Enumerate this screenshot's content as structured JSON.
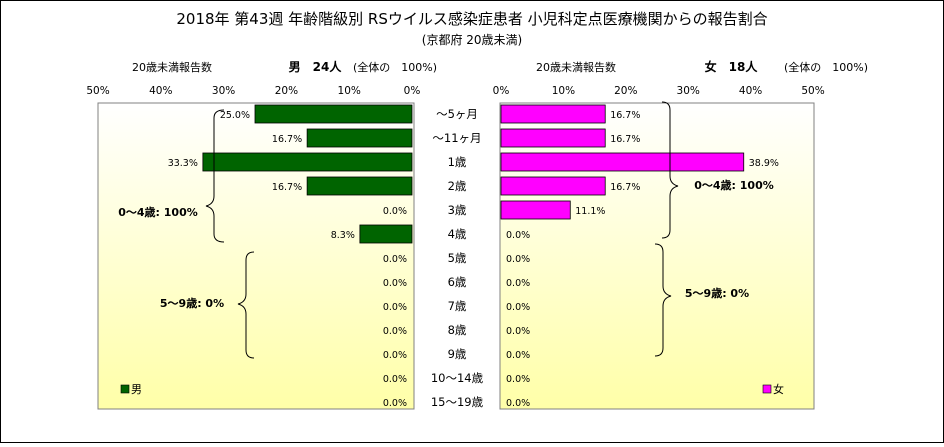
{
  "chart_data": {
    "type": "bar",
    "title": "2018年 第43週 年齢階級別 RSウイルス感染症患者 小児科定点医療機関からの報告割合",
    "subtitle": "(京都府 20歳未満)",
    "categories": [
      "～5ヶ月",
      "～11ヶ月",
      "1歳",
      "2歳",
      "3歳",
      "4歳",
      "5歳",
      "6歳",
      "7歳",
      "8歳",
      "9歳",
      "10～14歳",
      "15～19歳"
    ],
    "xlim": [
      0,
      50
    ],
    "ticks": [
      "50%",
      "40%",
      "30%",
      "20%",
      "10%",
      "0%"
    ],
    "ticks_right": [
      "0%",
      "10%",
      "20%",
      "30%",
      "40%",
      "50%"
    ],
    "series": [
      {
        "name": "男",
        "color": "#006400",
        "values": [
          25.0,
          16.7,
          33.3,
          16.7,
          0.0,
          8.3,
          0.0,
          0.0,
          0.0,
          0.0,
          0.0,
          0.0,
          0.0
        ],
        "labels": [
          "25.0%",
          "16.7%",
          "33.3%",
          "16.7%",
          "0.0%",
          "8.3%",
          "0.0%",
          "0.0%",
          "0.0%",
          "0.0%",
          "0.0%",
          "0.0%",
          "0.0%"
        ]
      },
      {
        "name": "女",
        "color": "#ff00ff",
        "values": [
          16.7,
          16.7,
          38.9,
          16.7,
          11.1,
          0.0,
          0.0,
          0.0,
          0.0,
          0.0,
          0.0,
          0.0,
          0.0
        ],
        "labels": [
          "16.7%",
          "16.7%",
          "38.9%",
          "16.7%",
          "11.1%",
          "0.0%",
          "0.0%",
          "0.0%",
          "0.0%",
          "0.0%",
          "0.0%",
          "0.0%",
          "0.0%"
        ]
      }
    ],
    "left_panel": {
      "header_left": "20歳未満報告数",
      "header_right": "男　24人",
      "header_note": "(全体の　100%)"
    },
    "right_panel": {
      "header_left": "20歳未満報告数",
      "header_right": "女　18人",
      "header_note": "(全体の　100%)"
    },
    "annotations": {
      "male_0_4": "0～4歳: 100%",
      "male_5_9": "5～9歳: 0%",
      "female_0_4": "0～4歳: 100%",
      "female_5_9": "5～9歳: 0%"
    },
    "legend": [
      "男",
      "女"
    ],
    "background_gradient": [
      "#ffffff",
      "#ffffa8"
    ],
    "grid": false
  }
}
